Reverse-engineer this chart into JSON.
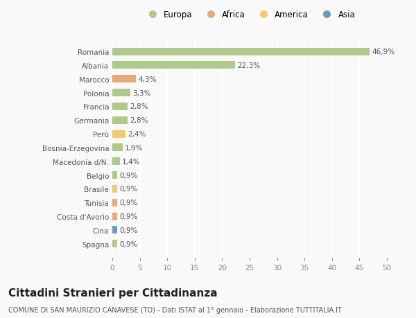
{
  "categories": [
    "Romania",
    "Albania",
    "Marocco",
    "Polonia",
    "Francia",
    "Germania",
    "Perù",
    "Bosnia-Erzegovina",
    "Macedonia d/N.",
    "Belgio",
    "Brasile",
    "Tunisia",
    "Costa d'Avorio",
    "Cina",
    "Spagna"
  ],
  "values": [
    46.9,
    22.3,
    4.3,
    3.3,
    2.8,
    2.8,
    2.4,
    1.9,
    1.4,
    0.9,
    0.9,
    0.9,
    0.9,
    0.9,
    0.9
  ],
  "labels": [
    "46,9%",
    "22,3%",
    "4,3%",
    "3,3%",
    "2,8%",
    "2,8%",
    "2,4%",
    "1,9%",
    "1,4%",
    "0,9%",
    "0,9%",
    "0,9%",
    "0,9%",
    "0,9%",
    "0,9%"
  ],
  "bar_colors": [
    "#aec98a",
    "#aec98a",
    "#e8a87c",
    "#aec98a",
    "#aec98a",
    "#aec98a",
    "#f2c96e",
    "#aec98a",
    "#aec98a",
    "#aec98a",
    "#f2c96e",
    "#e8a87c",
    "#e8a87c",
    "#6b9bc3",
    "#aec98a"
  ],
  "legend_labels": [
    "Europa",
    "Africa",
    "America",
    "Asia"
  ],
  "legend_colors": [
    "#aec98a",
    "#e8a87c",
    "#f2c96e",
    "#6b9bc3"
  ],
  "title": "Cittadini Stranieri per Cittadinanza",
  "subtitle": "COMUNE DI SAN MAURIZIO CANAVESE (TO) - Dati ISTAT al 1° gennaio - Elaborazione TUTTITALIA.IT",
  "xlim": [
    0,
    50
  ],
  "xticks": [
    0,
    5,
    10,
    15,
    20,
    25,
    30,
    35,
    40,
    45,
    50
  ],
  "background_color": "#f9f9f9",
  "grid_color": "#ffffff",
  "bar_height": 0.55,
  "label_fontsize": 7.5,
  "tick_fontsize": 7.5,
  "title_fontsize": 11,
  "subtitle_fontsize": 7
}
